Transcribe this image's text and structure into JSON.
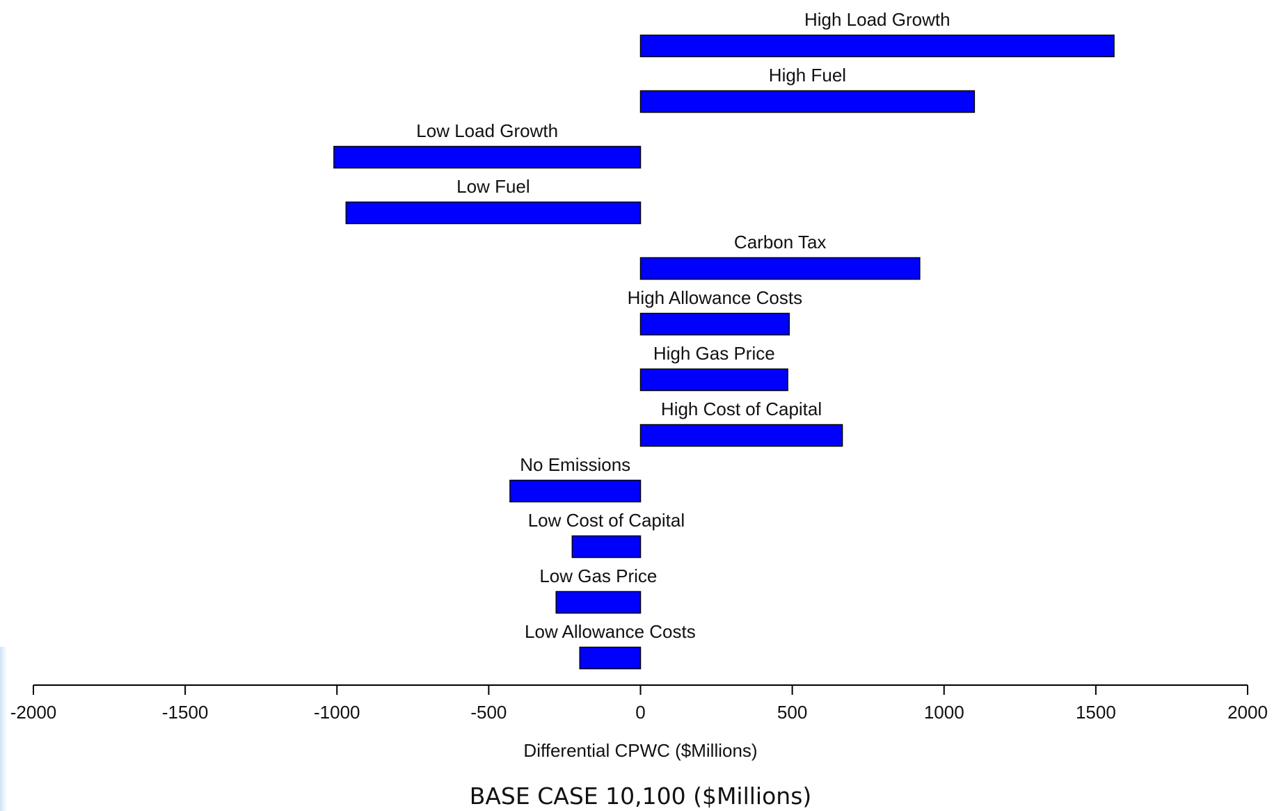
{
  "chart_data": {
    "type": "bar",
    "orientation": "horizontal",
    "categories": [
      "High Load Growth",
      "High Fuel",
      "Low Load Growth",
      "Low Fuel",
      "Carbon Tax",
      "High Allowance Costs",
      "High Gas Price",
      "High Cost of Capital",
      "No Emissions",
      "Low Cost of Capital",
      "Low Gas Price",
      "Low Allowance Costs"
    ],
    "values": [
      1560,
      1100,
      -1010,
      -970,
      920,
      490,
      485,
      665,
      -430,
      -225,
      -278,
      -200
    ],
    "xlabel": "Differential CPWC ($Millions)",
    "xlim": [
      -2000,
      2000
    ],
    "xticks": [
      -2000,
      -1500,
      -1000,
      -500,
      0,
      500,
      1000,
      1500,
      2000
    ],
    "bar_color": "#0000ff",
    "bar_edge_color": "#000000",
    "grid": false,
    "legend": "none"
  },
  "caption": "BASE CASE 10,100 ($Millions)"
}
